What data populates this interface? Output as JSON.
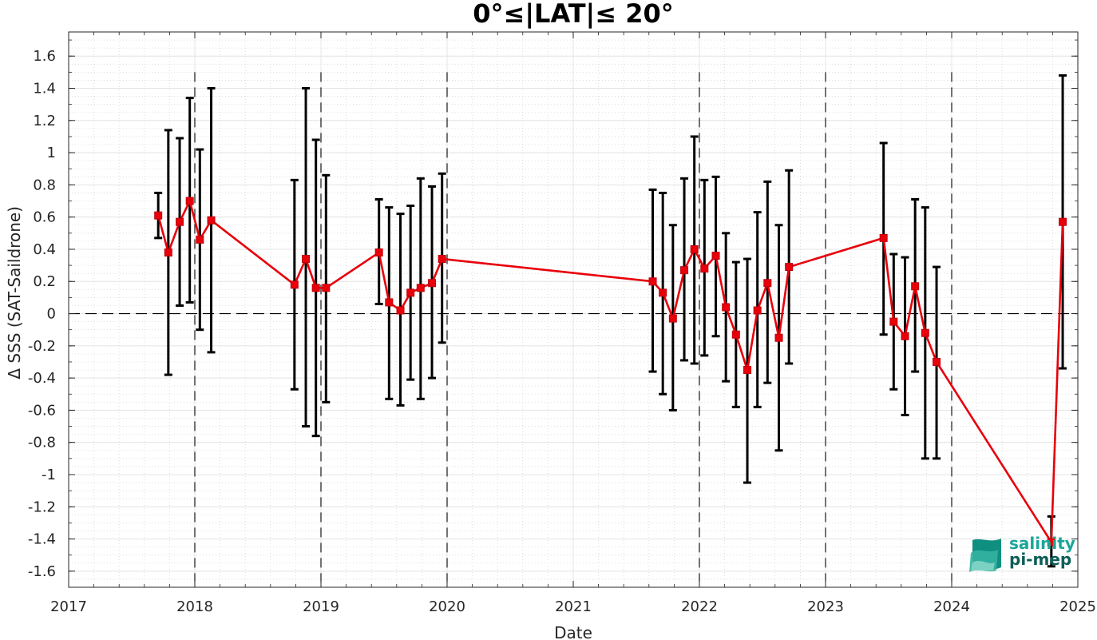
{
  "chart_data": {
    "type": "line",
    "title": "0°≤|LAT|≤ 20°",
    "xlabel": "Date",
    "ylabel": "Δ SSS (SAT-Saildrone)",
    "xlim": [
      2017.0,
      2025.0
    ],
    "ylim": [
      -1.7,
      1.75
    ],
    "xticks": [
      "2017",
      "2018",
      "2019",
      "2020",
      "2021",
      "2022",
      "2023",
      "2024",
      "2025"
    ],
    "yticks": [
      "-1.6",
      "-1.4",
      "-1.2",
      "-1",
      "-0.8",
      "-0.6",
      "-0.4",
      "-0.2",
      "0",
      "0.2",
      "0.4",
      "0.6",
      "0.8",
      "1",
      "1.2",
      "1.4",
      "1.6"
    ],
    "grid": true,
    "zero_line": 0,
    "dashed_year_markers": [
      "2018",
      "2019",
      "2020",
      "2022",
      "2023",
      "2024"
    ],
    "series": [
      {
        "color": "#e8000b",
        "errorbar_color": "#000000",
        "marker": "square",
        "points": [
          {
            "x": 2017.71,
            "y": 0.61,
            "low": 0.47,
            "high": 0.75
          },
          {
            "x": 2017.79,
            "y": 0.38,
            "low": -0.38,
            "high": 1.14
          },
          {
            "x": 2017.88,
            "y": 0.57,
            "low": 0.05,
            "high": 1.09
          },
          {
            "x": 2017.96,
            "y": 0.7,
            "low": 0.07,
            "high": 1.34
          },
          {
            "x": 2018.04,
            "y": 0.46,
            "low": -0.1,
            "high": 1.02
          },
          {
            "x": 2018.13,
            "y": 0.58,
            "low": -0.24,
            "high": 1.4
          },
          {
            "x": 2018.79,
            "y": 0.18,
            "low": -0.47,
            "high": 0.83
          },
          {
            "x": 2018.88,
            "y": 0.34,
            "low": -0.7,
            "high": 1.4
          },
          {
            "x": 2018.96,
            "y": 0.16,
            "low": -0.76,
            "high": 1.08
          },
          {
            "x": 2019.04,
            "y": 0.16,
            "low": -0.55,
            "high": 0.86
          },
          {
            "x": 2019.46,
            "y": 0.38,
            "low": 0.06,
            "high": 0.71
          },
          {
            "x": 2019.54,
            "y": 0.07,
            "low": -0.53,
            "high": 0.66
          },
          {
            "x": 2019.63,
            "y": 0.02,
            "low": -0.57,
            "high": 0.62
          },
          {
            "x": 2019.71,
            "y": 0.13,
            "low": -0.41,
            "high": 0.67
          },
          {
            "x": 2019.79,
            "y": 0.16,
            "low": -0.53,
            "high": 0.84
          },
          {
            "x": 2019.88,
            "y": 0.19,
            "low": -0.4,
            "high": 0.79
          },
          {
            "x": 2019.96,
            "y": 0.34,
            "low": -0.18,
            "high": 0.87
          },
          {
            "x": 2021.63,
            "y": 0.2,
            "low": -0.36,
            "high": 0.77
          },
          {
            "x": 2021.71,
            "y": 0.13,
            "low": -0.5,
            "high": 0.75
          },
          {
            "x": 2021.79,
            "y": -0.03,
            "low": -0.6,
            "high": 0.55
          },
          {
            "x": 2021.88,
            "y": 0.27,
            "low": -0.29,
            "high": 0.84
          },
          {
            "x": 2021.96,
            "y": 0.4,
            "low": -0.31,
            "high": 1.1
          },
          {
            "x": 2022.04,
            "y": 0.28,
            "low": -0.26,
            "high": 0.83
          },
          {
            "x": 2022.13,
            "y": 0.36,
            "low": -0.14,
            "high": 0.85
          },
          {
            "x": 2022.21,
            "y": 0.04,
            "low": -0.42,
            "high": 0.5
          },
          {
            "x": 2022.29,
            "y": -0.13,
            "low": -0.58,
            "high": 0.32
          },
          {
            "x": 2022.38,
            "y": -0.35,
            "low": -1.05,
            "high": 0.34
          },
          {
            "x": 2022.46,
            "y": 0.02,
            "low": -0.58,
            "high": 0.63
          },
          {
            "x": 2022.54,
            "y": 0.19,
            "low": -0.43,
            "high": 0.82
          },
          {
            "x": 2022.63,
            "y": -0.15,
            "low": -0.85,
            "high": 0.55
          },
          {
            "x": 2022.71,
            "y": 0.29,
            "low": -0.31,
            "high": 0.89
          },
          {
            "x": 2023.46,
            "y": 0.47,
            "low": -0.13,
            "high": 1.06
          },
          {
            "x": 2023.54,
            "y": -0.05,
            "low": -0.47,
            "high": 0.37
          },
          {
            "x": 2023.63,
            "y": -0.14,
            "low": -0.63,
            "high": 0.35
          },
          {
            "x": 2023.71,
            "y": 0.17,
            "low": -0.36,
            "high": 0.71
          },
          {
            "x": 2023.79,
            "y": -0.12,
            "low": -0.9,
            "high": 0.66
          },
          {
            "x": 2023.88,
            "y": -0.3,
            "low": -0.9,
            "high": 0.29
          },
          {
            "x": 2024.79,
            "y": -1.42,
            "low": -1.57,
            "high": -1.26
          },
          {
            "x": 2024.88,
            "y": 0.57,
            "low": -0.34,
            "high": 1.48
          }
        ]
      }
    ]
  },
  "logo": {
    "line1": "salinity",
    "line2": "pi-mep",
    "colors": {
      "line1": "#1aa69a",
      "line2": "#0e5e58",
      "wave1": "#0f8f80",
      "wave2": "#34b3a1",
      "wave3": "#7fd3c4"
    }
  }
}
